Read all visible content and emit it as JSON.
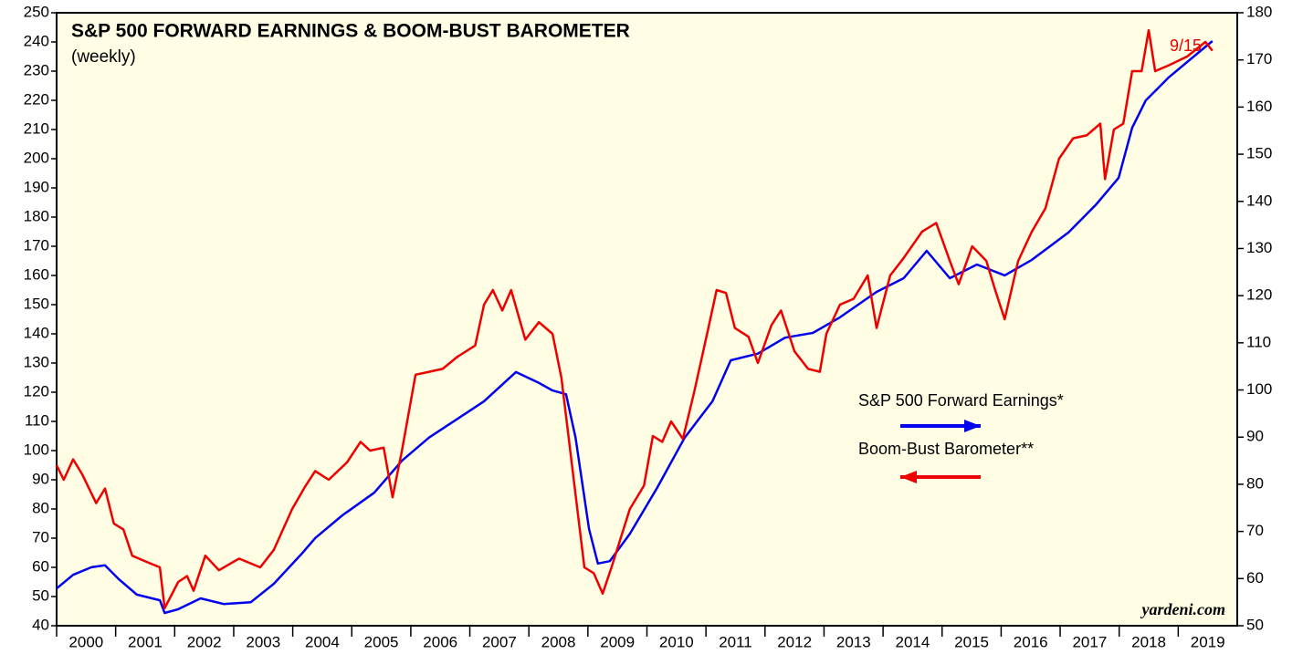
{
  "chart_data": {
    "type": "line",
    "title": "S&P 500 FORWARD EARNINGS & BOOM-BUST BAROMETER",
    "subtitle": "(weekly)",
    "annotation": "9/15",
    "source": "yardeni.com",
    "xlim": [
      2000,
      2020
    ],
    "xticks": [
      2000,
      2001,
      2002,
      2003,
      2004,
      2005,
      2006,
      2007,
      2008,
      2009,
      2010,
      2011,
      2012,
      2013,
      2014,
      2015,
      2016,
      2017,
      2018,
      2019
    ],
    "ylim": [
      40,
      250
    ],
    "yticks": [
      40,
      50,
      60,
      70,
      80,
      90,
      100,
      110,
      120,
      130,
      140,
      150,
      160,
      170,
      180,
      190,
      200,
      210,
      220,
      230,
      240,
      250
    ],
    "y2lim": [
      50,
      180
    ],
    "y2ticks": [
      50,
      60,
      70,
      80,
      90,
      100,
      110,
      120,
      130,
      140,
      150,
      160,
      170,
      180
    ],
    "series": [
      {
        "name": "S&P 500 Forward Earnings*",
        "color": "#0000ee",
        "axis": "y2",
        "x": [
          2000.0,
          2000.28,
          2000.59,
          2000.82,
          2001.05,
          2001.36,
          2001.75,
          2001.83,
          2002.06,
          2002.44,
          2002.83,
          2003.29,
          2003.68,
          2004.14,
          2004.38,
          2004.84,
          2005.38,
          2005.85,
          2006.31,
          2006.77,
          2007.24,
          2007.78,
          2008.17,
          2008.4,
          2008.63,
          2008.79,
          2009.02,
          2009.17,
          2009.37,
          2009.71,
          2010.17,
          2010.64,
          2011.11,
          2011.42,
          2011.88,
          2012.34,
          2012.81,
          2013.27,
          2013.89,
          2014.35,
          2014.74,
          2015.13,
          2015.59,
          2016.06,
          2016.52,
          2017.14,
          2017.6,
          2017.99,
          2018.22,
          2018.45,
          2018.84,
          2019.3,
          2019.58
        ],
        "values": [
          57.9,
          60.8,
          62.4,
          62.8,
          59.9,
          56.6,
          55.4,
          52.7,
          53.5,
          55.8,
          54.6,
          55.0,
          58.9,
          65.1,
          68.6,
          73.4,
          78.2,
          85.0,
          89.9,
          93.7,
          97.6,
          103.8,
          101.5,
          99.9,
          99.1,
          89.9,
          70.5,
          63.2,
          63.7,
          69.5,
          79.2,
          89.9,
          97.6,
          106.3,
          107.7,
          111.1,
          112.1,
          115.4,
          120.8,
          123.7,
          129.5,
          123.7,
          126.6,
          124.3,
          127.6,
          133.4,
          139.2,
          145.0,
          155.6,
          161.4,
          166.3,
          171.1,
          174.0
        ]
      },
      {
        "name": "Boom-Bust Barometer**",
        "color": "#ee0000",
        "axis": "y",
        "x": [
          2000.0,
          2000.12,
          2000.28,
          2000.43,
          2000.67,
          2000.82,
          2000.97,
          2001.13,
          2001.28,
          2001.51,
          2001.75,
          2001.83,
          2002.06,
          2002.21,
          2002.32,
          2002.52,
          2002.75,
          2003.09,
          2003.45,
          2003.68,
          2003.99,
          2004.22,
          2004.38,
          2004.61,
          2004.92,
          2005.15,
          2005.31,
          2005.54,
          2005.69,
          2005.85,
          2006.08,
          2006.31,
          2006.54,
          2006.78,
          2007.09,
          2007.24,
          2007.39,
          2007.55,
          2007.7,
          2007.94,
          2008.17,
          2008.4,
          2008.55,
          2008.79,
          2008.94,
          2009.1,
          2009.25,
          2009.4,
          2009.71,
          2009.95,
          2010.1,
          2010.26,
          2010.41,
          2010.61,
          2010.8,
          2011.03,
          2011.18,
          2011.34,
          2011.49,
          2011.72,
          2011.88,
          2012.11,
          2012.27,
          2012.5,
          2012.73,
          2012.93,
          2013.04,
          2013.27,
          2013.5,
          2013.74,
          2013.89,
          2014.12,
          2014.35,
          2014.66,
          2014.9,
          2015.13,
          2015.28,
          2015.51,
          2015.75,
          2015.9,
          2016.06,
          2016.29,
          2016.52,
          2016.75,
          2016.98,
          2017.22,
          2017.45,
          2017.68,
          2017.76,
          2017.91,
          2018.07,
          2018.22,
          2018.38,
          2018.5,
          2018.61,
          2018.84,
          2019.15,
          2019.46,
          2019.58
        ],
        "values": [
          95,
          90,
          97,
          92,
          82,
          87,
          75,
          73,
          64,
          62,
          60,
          46,
          55,
          57,
          52,
          64,
          59,
          63,
          60,
          66,
          80,
          88,
          93,
          90,
          96,
          103,
          100,
          101,
          84,
          100,
          126,
          127,
          128,
          132,
          136,
          150,
          155,
          148,
          155,
          138,
          144,
          140,
          125,
          85,
          60,
          58,
          51,
          60,
          80,
          88,
          105,
          103,
          110,
          104,
          120,
          141,
          155,
          154,
          142,
          139,
          130,
          143,
          148,
          134,
          128,
          127,
          140,
          150,
          152,
          160,
          142,
          160,
          166,
          175,
          178,
          165,
          157,
          170,
          165,
          155,
          145,
          165,
          175,
          183,
          200,
          207,
          208,
          212,
          193,
          210,
          212,
          230,
          230,
          244,
          230,
          232,
          235,
          240,
          237
        ]
      }
    ]
  }
}
